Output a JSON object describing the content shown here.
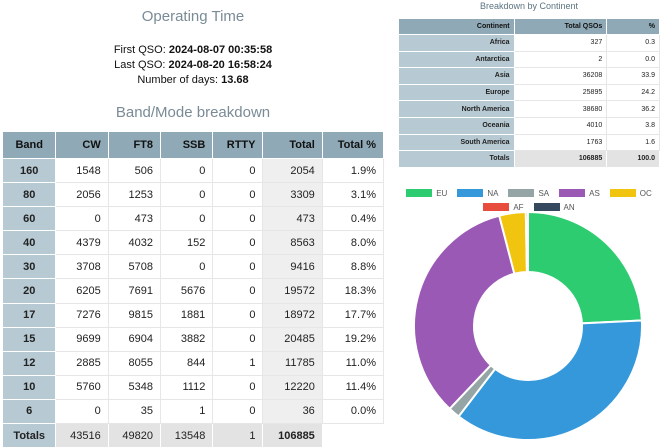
{
  "operating_time": {
    "title": "Operating Time",
    "first_qso_label": "First QSO:",
    "first_qso": "2024-08-07 00:35:58",
    "last_qso_label": "Last QSO:",
    "last_qso": "2024-08-20 16:58:24",
    "days_label": "Number of days:",
    "days": "13.68"
  },
  "band_mode": {
    "title": "Band/Mode breakdown",
    "headers": [
      "Band",
      "CW",
      "FT8",
      "SSB",
      "RTTY",
      "Total",
      "Total %"
    ],
    "rows": [
      [
        "160",
        "1548",
        "506",
        "0",
        "0",
        "2054",
        "1.9%"
      ],
      [
        "80",
        "2056",
        "1253",
        "0",
        "0",
        "3309",
        "3.1%"
      ],
      [
        "60",
        "0",
        "473",
        "0",
        "0",
        "473",
        "0.4%"
      ],
      [
        "40",
        "4379",
        "4032",
        "152",
        "0",
        "8563",
        "8.0%"
      ],
      [
        "30",
        "3708",
        "5708",
        "0",
        "0",
        "9416",
        "8.8%"
      ],
      [
        "20",
        "6205",
        "7691",
        "5676",
        "0",
        "19572",
        "18.3%"
      ],
      [
        "17",
        "7276",
        "9815",
        "1881",
        "0",
        "18972",
        "17.7%"
      ],
      [
        "15",
        "9699",
        "6904",
        "3882",
        "0",
        "20485",
        "19.2%"
      ],
      [
        "12",
        "2885",
        "8055",
        "844",
        "1",
        "11785",
        "11.0%"
      ],
      [
        "10",
        "5760",
        "5348",
        "1112",
        "0",
        "12220",
        "11.4%"
      ],
      [
        "6",
        "0",
        "35",
        "1",
        "0",
        "36",
        "0.0%"
      ]
    ],
    "totals": [
      "Totals",
      "43516",
      "49820",
      "13548",
      "1",
      "106885",
      ""
    ]
  },
  "continent": {
    "title": "Breakdown by Continent",
    "headers": [
      "Continent",
      "Total QSOs",
      "%"
    ],
    "rows": [
      [
        "Africa",
        "327",
        "0.3"
      ],
      [
        "Antarctica",
        "2",
        "0.0"
      ],
      [
        "Asia",
        "36208",
        "33.9"
      ],
      [
        "Europe",
        "25895",
        "24.2"
      ],
      [
        "North America",
        "38680",
        "36.2"
      ],
      [
        "Oceania",
        "4010",
        "3.8"
      ],
      [
        "South America",
        "1763",
        "1.6"
      ]
    ],
    "totals": [
      "Totals",
      "106885",
      "100.0"
    ]
  },
  "chart_data": {
    "type": "pie",
    "donut": true,
    "legend_position": "top",
    "categories": [
      "EU",
      "NA",
      "SA",
      "AS",
      "OC",
      "AF",
      "AN"
    ],
    "values": [
      25895,
      38680,
      1763,
      36208,
      4010,
      327,
      2
    ],
    "colors": [
      "#2ecc71",
      "#3498db",
      "#95a5a6",
      "#9b59b6",
      "#f1c40f",
      "#e74c3c",
      "#34495e"
    ]
  }
}
